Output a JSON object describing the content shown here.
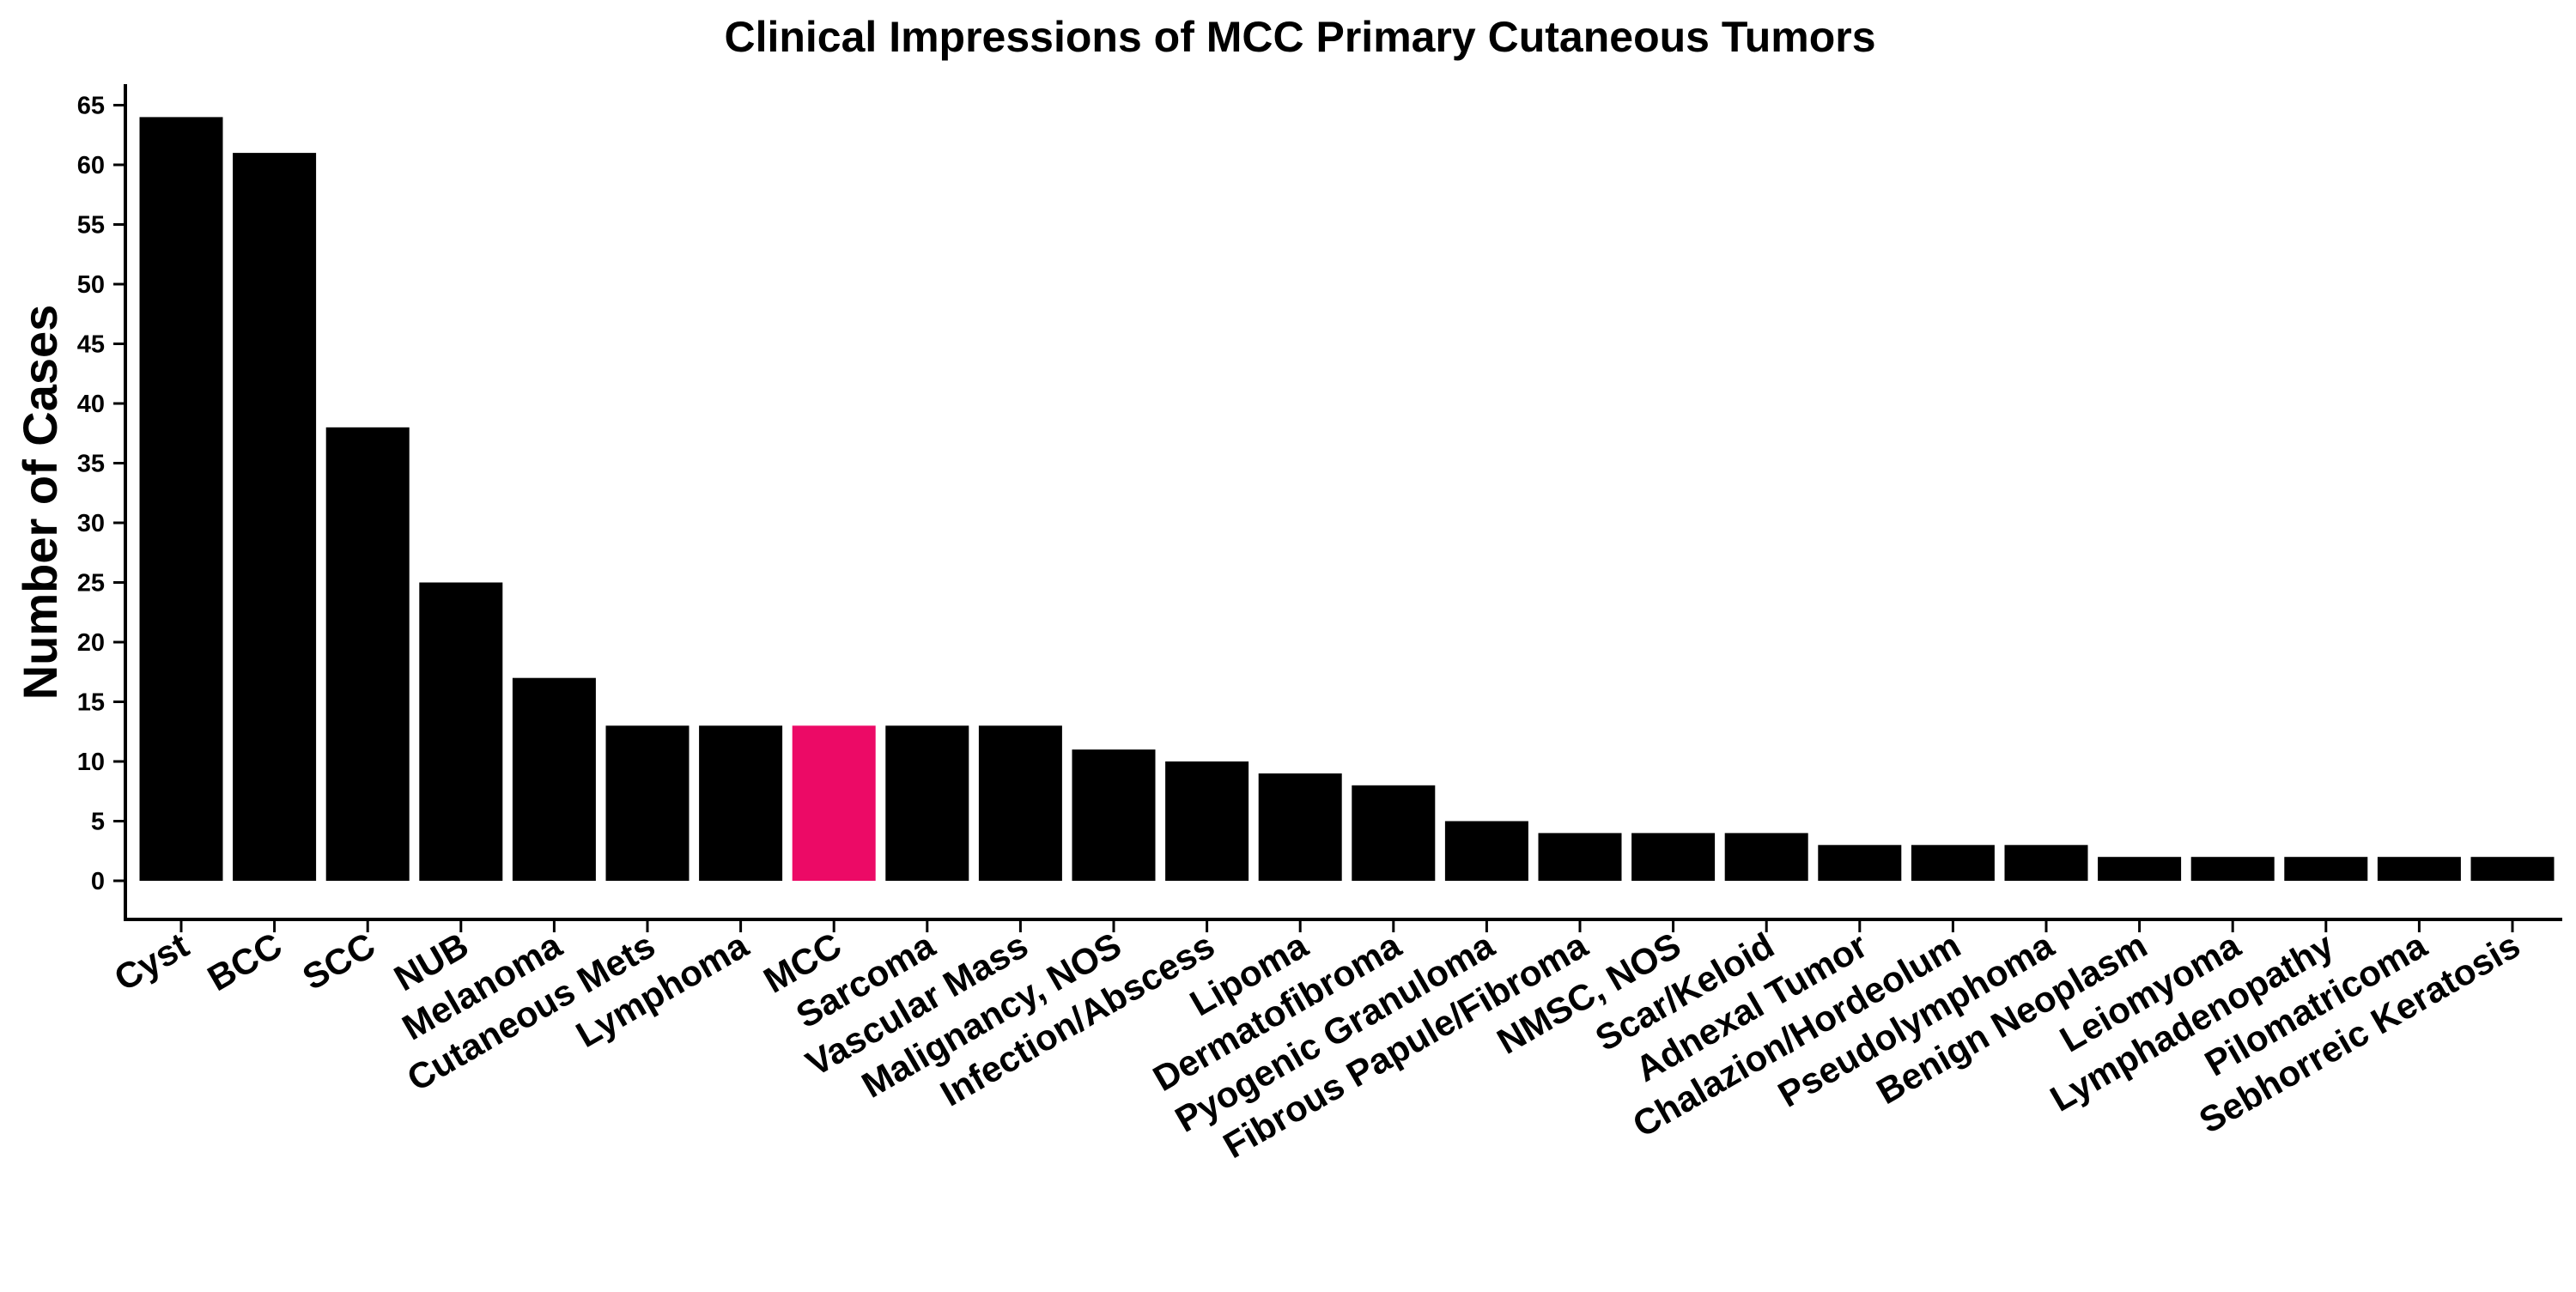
{
  "chart_data": {
    "type": "bar",
    "title": "Clinical Impressions of MCC Primary Cutaneous Tumors",
    "xlabel": "",
    "ylabel": "Number of Cases",
    "ylim": [
      -3,
      67
    ],
    "yticks": [
      0,
      5,
      10,
      15,
      20,
      25,
      30,
      35,
      40,
      45,
      50,
      55,
      60,
      65
    ],
    "categories": [
      "Cyst",
      "BCC",
      "SCC",
      "NUB",
      "Melanoma",
      "Cutaneous Mets",
      "Lymphoma",
      "MCC",
      "Sarcoma",
      "Vascular Mass",
      "Malignancy, NOS",
      "Infection/Abscess",
      "Lipoma",
      "Dermatofibroma",
      "Pyogenic Granuloma",
      "Fibrous Papule/Fibroma",
      "NMSC, NOS",
      "Scar/Keloid",
      "Adnexal Tumor",
      "Chalazion/Hordeolum",
      "Pseudolymphoma",
      "Benign Neoplasm",
      "Leiomyoma",
      "Lymphadenopathy",
      "Pilomatricoma",
      "Sebhorreic Keratosis"
    ],
    "values": [
      64,
      61,
      38,
      25,
      17,
      13,
      13,
      13,
      13,
      13,
      11,
      10,
      9,
      8,
      5,
      4,
      4,
      4,
      3,
      3,
      3,
      2,
      2,
      2,
      2,
      2
    ],
    "bar_color": "#000000",
    "highlight_category": "MCC",
    "highlight_color": "#ec0a66",
    "grid": false,
    "legend": "none"
  }
}
